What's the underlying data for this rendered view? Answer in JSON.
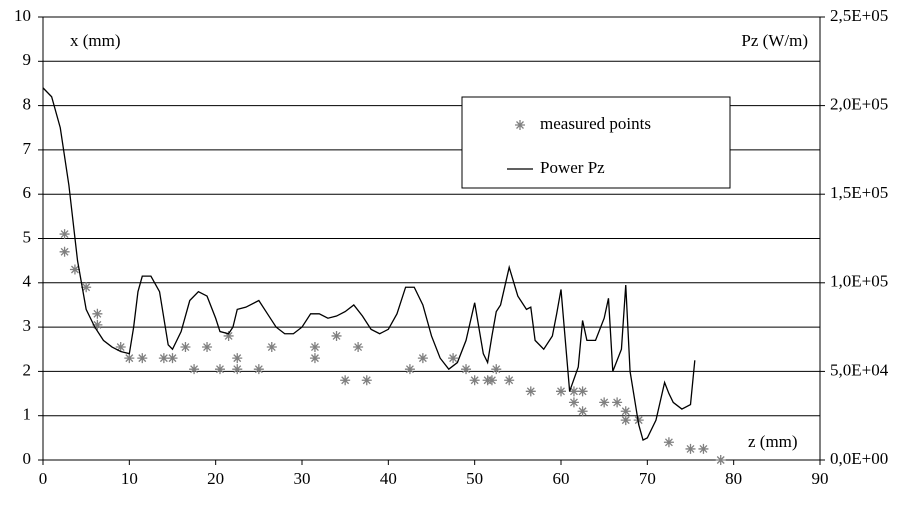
{
  "chart_data": {
    "type": "scatter",
    "y_label": "x (mm)",
    "y2_label": "Pz (W/m)",
    "x_label": "z (mm)",
    "xlim": [
      0,
      90
    ],
    "xticks": [
      0,
      10,
      20,
      30,
      40,
      50,
      60,
      70,
      80,
      90
    ],
    "ylim": [
      0,
      10
    ],
    "yticks": [
      0,
      1,
      2,
      3,
      4,
      5,
      6,
      7,
      8,
      9,
      10
    ],
    "y2lim": [
      0,
      250000
    ],
    "y2ticks": [
      {
        "value": 0,
        "label": "0,0E+00"
      },
      {
        "value": 50000,
        "label": "5,0E+04"
      },
      {
        "value": 100000,
        "label": "1,0E+05"
      },
      {
        "value": 150000,
        "label": "1,5E+05"
      },
      {
        "value": 200000,
        "label": "2,0E+05"
      },
      {
        "value": 250000,
        "label": "2,5E+05"
      }
    ],
    "grid": true,
    "series": [
      {
        "name": "measured points",
        "type": "scatter",
        "color": "#808080",
        "x": [
          2.5,
          2.5,
          3.7,
          5,
          6.3,
          6.3,
          9,
          10,
          11.5,
          14,
          15,
          16.5,
          17.5,
          19,
          20.5,
          21.5,
          22.5,
          22.5,
          25,
          26.5,
          31.5,
          31.5,
          34,
          35,
          36.5,
          37.5,
          42.5,
          44,
          47.5,
          49,
          50,
          51.5,
          52,
          52.5,
          54,
          56.5,
          60,
          61.5,
          61.5,
          62.5,
          62.5,
          65,
          66.5,
          67.5,
          67.5,
          69,
          72.5,
          75,
          76.5,
          78.5
        ],
        "values": [
          5.1,
          4.7,
          4.3,
          3.9,
          3.3,
          3.05,
          2.55,
          2.3,
          2.3,
          2.3,
          2.3,
          2.55,
          2.05,
          2.55,
          2.05,
          2.8,
          2.3,
          2.05,
          2.05,
          2.55,
          2.55,
          2.3,
          2.8,
          1.8,
          2.55,
          1.8,
          2.05,
          2.3,
          2.3,
          2.05,
          1.8,
          1.8,
          1.8,
          2.05,
          1.8,
          1.55,
          1.55,
          1.55,
          1.3,
          1.55,
          1.1,
          1.3,
          1.3,
          1.1,
          0.9,
          0.9,
          0.4,
          0.25,
          0.25,
          0
        ]
      },
      {
        "name": "Power Pz",
        "type": "line",
        "axis": "y2",
        "color": "#000000",
        "x": [
          0,
          1,
          2,
          3,
          4,
          5,
          6,
          7,
          8,
          9,
          10,
          10.5,
          11,
          11.5,
          12.5,
          13.5,
          14.5,
          15,
          16,
          17,
          18,
          19,
          20,
          20.5,
          21.5,
          22,
          22.5,
          23.5,
          25,
          26,
          27,
          28,
          29,
          30,
          31,
          32,
          33,
          34,
          35,
          36,
          37,
          38,
          39,
          40,
          41,
          42,
          43,
          44,
          45,
          46,
          47,
          48,
          49,
          50,
          51,
          51.5,
          52,
          52.5,
          53,
          54,
          55,
          56,
          56.5,
          57,
          58,
          59,
          59.5,
          60,
          61,
          62,
          62.5,
          63,
          64,
          65,
          65.5,
          66,
          67,
          67.5,
          68,
          69,
          69.5,
          70,
          71,
          72,
          72.5,
          73,
          74,
          75,
          75.5
        ],
        "values": [
          210000,
          205000,
          187500,
          155000,
          112500,
          85000,
          75000,
          67500,
          63750,
          61250,
          60000,
          75000,
          95000,
          103750,
          103750,
          95000,
          65000,
          62500,
          72500,
          90000,
          95000,
          92500,
          80000,
          72500,
          71250,
          75000,
          85000,
          86250,
          90000,
          82500,
          75000,
          71250,
          71250,
          75000,
          82500,
          82500,
          80000,
          81250,
          83750,
          87500,
          81250,
          73750,
          71250,
          73750,
          82500,
          97500,
          97500,
          87500,
          70000,
          57500,
          51250,
          55000,
          67500,
          88750,
          60000,
          55000,
          70000,
          83750,
          87500,
          108750,
          92500,
          85000,
          86250,
          67500,
          62500,
          70000,
          82500,
          96250,
          38750,
          52500,
          78750,
          67500,
          67500,
          80000,
          91250,
          50000,
          62500,
          98750,
          50000,
          20000,
          11250,
          12500,
          22500,
          43750,
          37500,
          32500,
          28750,
          31250,
          56250
        ]
      }
    ]
  }
}
